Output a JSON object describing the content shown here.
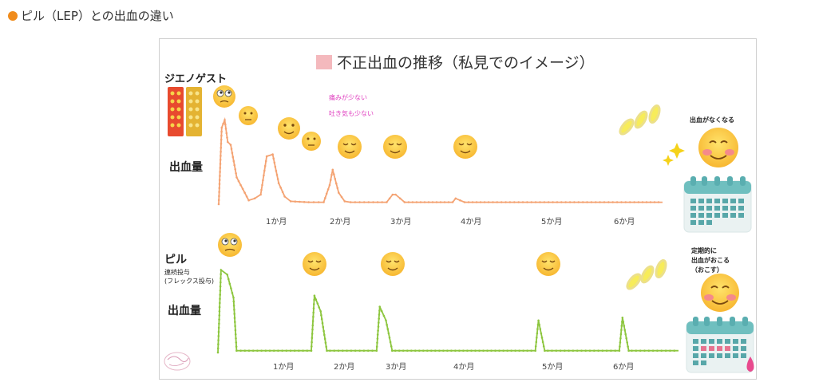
{
  "heading": {
    "text": "ピル（LEP）との出血の違い",
    "bullet_color": "#f08c1c"
  },
  "chart_data": [
    {
      "type": "line",
      "title": "不正出血の推移（私見でのイメージ）",
      "series": [
        {
          "name": "ジエノゲスト",
          "color": "#f4a373"
        }
      ],
      "subtitle": "",
      "ylabel": "出血量",
      "x_categories": [
        "1か月",
        "2か月",
        "3か月",
        "4か月",
        "5か月",
        "6か月"
      ],
      "x": [
        0,
        0.05,
        0.1,
        0.15,
        0.2,
        0.3,
        0.5,
        0.6,
        0.7,
        0.75,
        0.8,
        0.9,
        1.0,
        1.1,
        1.2,
        1.5,
        1.75,
        1.85,
        1.9,
        2.0,
        2.1,
        2.2,
        2.5,
        2.8,
        2.9,
        2.95,
        3.1,
        3.5,
        3.9,
        3.95,
        4.1,
        4.5,
        5.0,
        5.5,
        6.0,
        6.5,
        7.0,
        7.4
      ],
      "y": [
        0,
        80,
        88,
        65,
        62,
        28,
        4,
        6,
        10,
        30,
        50,
        52,
        22,
        8,
        3,
        2,
        2,
        20,
        36,
        12,
        3,
        2,
        2,
        2,
        10,
        10,
        2,
        2,
        2,
        6,
        2,
        2,
        2,
        2,
        2,
        2,
        2,
        2
      ],
      "annotations": [
        "痛みが少ない",
        "吐き気も少ない",
        "出血がなくなる"
      ]
    },
    {
      "type": "line",
      "series": [
        {
          "name": "ピル",
          "color": "#8dc63f"
        }
      ],
      "subtitle": "連続投与\n(フレックス投与)",
      "ylabel": "出血量",
      "x_categories": [
        "1か月",
        "2か月",
        "3か月",
        "4か月",
        "5か月",
        "6か月"
      ],
      "x": [
        0,
        0.05,
        0.15,
        0.25,
        0.3,
        1.5,
        1.55,
        1.65,
        1.75,
        1.8,
        2.55,
        2.6,
        2.7,
        2.8,
        2.85,
        5.1,
        5.15,
        5.25,
        5.3,
        6.45,
        6.5,
        6.6,
        6.65,
        7.4
      ],
      "y": [
        0,
        90,
        85,
        60,
        2,
        2,
        62,
        45,
        2,
        2,
        2,
        50,
        35,
        2,
        2,
        2,
        35,
        2,
        2,
        2,
        38,
        2,
        2,
        2
      ],
      "annotations": [
        "定期的に",
        "出血がおこる",
        "（おこす）"
      ]
    }
  ]
}
